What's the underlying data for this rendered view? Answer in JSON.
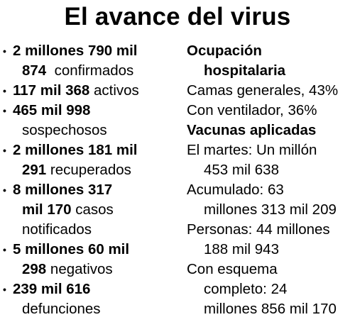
{
  "title": "El avance del virus",
  "left": {
    "confirmed_b1": "2 millones 790 mil",
    "confirmed_b2": "874",
    "confirmed_t": "confirmados",
    "active_b": "117 mil 368",
    "active_t": "activos",
    "suspect_b": "465 mil 998",
    "suspect_t": "sospechosos",
    "recovered_b1": "2 millones 181 mil",
    "recovered_b2": "291",
    "recovered_t": "recuperados",
    "notified_b1": "8 millones 317",
    "notified_b2": "mil 170",
    "notified_t1": "casos",
    "notified_t2": "notificados",
    "negative_b1": "5 millones 60 mil",
    "negative_b2": "298",
    "negative_t": "negativos",
    "deaths_b": "239 mil 616",
    "deaths_t": "defunciones"
  },
  "right": {
    "hosp_h1": "Ocupación",
    "hosp_h2": "hospitalaria",
    "beds": "Camas generales, 43%",
    "vent": "Con ventilador, 36%",
    "vac_h": "Vacunas aplicadas",
    "tue_1": "El martes: Un millón",
    "tue_2": "453 mil 638",
    "acc_1": "Acumulado: 63",
    "acc_2": "millones 313 mil 209",
    "per_1": "Personas: 44 millones",
    "per_2": "188 mil 943",
    "full_1": "Con esquema",
    "full_2": "completo: 24",
    "full_3": "millones 856 mil 170"
  }
}
